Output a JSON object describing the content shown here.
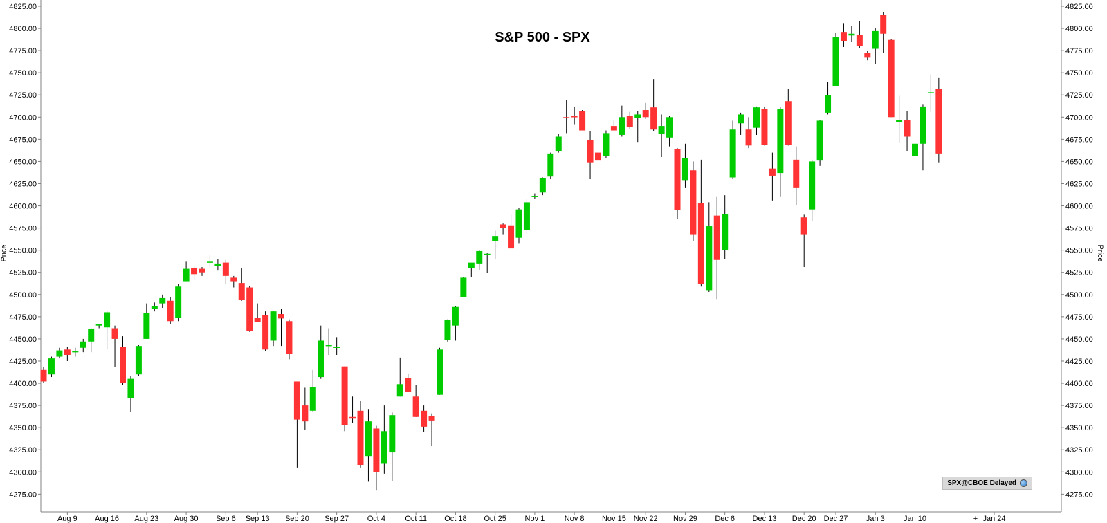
{
  "chart_data": {
    "type": "candlestick",
    "title": "S&P 500 - SPX",
    "ylabel_left": "Price",
    "ylabel_right": "Price",
    "ylim": [
      4255,
      4832
    ],
    "y_ticks": [
      4275,
      4300,
      4325,
      4350,
      4375,
      4400,
      4425,
      4450,
      4475,
      4500,
      4525,
      4550,
      4575,
      4600,
      4625,
      4650,
      4675,
      4700,
      4725,
      4750,
      4775,
      4800,
      4825
    ],
    "x_ticks": [
      "Aug 9",
      "Aug 16",
      "Aug 23",
      "Aug 30",
      "Sep 6",
      "Sep 13",
      "Sep 20",
      "Sep 27",
      "Oct 4",
      "Oct 11",
      "Oct 18",
      "Oct 25",
      "Nov 1",
      "Nov 8",
      "Nov 15",
      "Nov 22",
      "Nov 29",
      "Dec 6",
      "Dec 13",
      "Dec 20",
      "Dec 27",
      "Jan 3",
      "Jan 10",
      "Jan 24"
    ],
    "x_tick_slot": [
      3,
      8,
      13,
      18,
      23,
      27,
      32,
      37,
      42,
      47,
      52,
      57,
      62,
      67,
      72,
      76,
      81,
      86,
      91,
      96,
      100,
      105,
      110,
      120
    ],
    "x_slot_count": 122,
    "colors": {
      "up": "#00cc00",
      "down": "#ff3333",
      "wick": "#000000",
      "axis": "#808080"
    },
    "candles": [
      {
        "open": 4415,
        "high": 4418,
        "low": 4400,
        "close": 4402
      },
      {
        "open": 4410,
        "high": 4430,
        "low": 4407,
        "close": 4428
      },
      {
        "open": 4430,
        "high": 4440,
        "low": 4428,
        "close": 4437
      },
      {
        "open": 4438,
        "high": 4441,
        "low": 4425,
        "close": 4432
      },
      {
        "open": 4436,
        "high": 4440,
        "low": 4430,
        "close": 4436
      },
      {
        "open": 4440,
        "high": 4450,
        "low": 4435,
        "close": 4447
      },
      {
        "open": 4447,
        "high": 4462,
        "low": 4435,
        "close": 4461
      },
      {
        "open": 4465,
        "high": 4467,
        "low": 4462,
        "close": 4467
      },
      {
        "open": 4463,
        "high": 4481,
        "low": 4438,
        "close": 4480
      },
      {
        "open": 4462,
        "high": 4465,
        "low": 4418,
        "close": 4450
      },
      {
        "open": 4441,
        "high": 4453,
        "low": 4398,
        "close": 4400
      },
      {
        "open": 4383,
        "high": 4408,
        "low": 4368,
        "close": 4405
      },
      {
        "open": 4410,
        "high": 4443,
        "low": 4408,
        "close": 4442
      },
      {
        "open": 4450,
        "high": 4490,
        "low": 4450,
        "close": 4479
      },
      {
        "open": 4484,
        "high": 4491,
        "low": 4481,
        "close": 4487
      },
      {
        "open": 4490,
        "high": 4500,
        "low": 4485,
        "close": 4496
      },
      {
        "open": 4493,
        "high": 4497,
        "low": 4467,
        "close": 4470
      },
      {
        "open": 4474,
        "high": 4512,
        "low": 4470,
        "close": 4509
      },
      {
        "open": 4515,
        "high": 4537,
        "low": 4515,
        "close": 4529
      },
      {
        "open": 4530,
        "high": 4532,
        "low": 4516,
        "close": 4523
      },
      {
        "open": 4529,
        "high": 4531,
        "low": 4521,
        "close": 4525
      },
      {
        "open": 4536,
        "high": 4545,
        "low": 4530,
        "close": 4537
      },
      {
        "open": 4532,
        "high": 4540,
        "low": 4527,
        "close": 4535
      },
      {
        "open": 4536,
        "high": 4539,
        "low": 4512,
        "close": 4521
      },
      {
        "open": 4519,
        "high": 4521,
        "low": 4508,
        "close": 4515
      },
      {
        "open": 4513,
        "high": 4530,
        "low": 4493,
        "close": 4494
      },
      {
        "open": 4508,
        "high": 4510,
        "low": 4458,
        "close": 4459
      },
      {
        "open": 4474,
        "high": 4490,
        "low": 4470,
        "close": 4469
      },
      {
        "open": 4477,
        "high": 4481,
        "low": 4436,
        "close": 4438
      },
      {
        "open": 4448,
        "high": 4481,
        "low": 4442,
        "close": 4481
      },
      {
        "open": 4478,
        "high": 4484,
        "low": 4442,
        "close": 4473
      },
      {
        "open": 4470,
        "high": 4472,
        "low": 4427,
        "close": 4433
      },
      {
        "open": 4402,
        "high": 4402,
        "low": 4305,
        "close": 4359
      },
      {
        "open": 4375,
        "high": 4395,
        "low": 4347,
        "close": 4357
      },
      {
        "open": 4369,
        "high": 4415,
        "low": 4368,
        "close": 4396
      },
      {
        "open": 4407,
        "high": 4465,
        "low": 4405,
        "close": 4448
      },
      {
        "open": 4443,
        "high": 4462,
        "low": 4432,
        "close": 4443
      },
      {
        "open": 4441,
        "high": 4452,
        "low": 4432,
        "close": 4441
      },
      {
        "open": 4419,
        "high": 4419,
        "low": 4346,
        "close": 4353
      },
      {
        "open": 4362,
        "high": 4385,
        "low": 4355,
        "close": 4361
      },
      {
        "open": 4369,
        "high": 4380,
        "low": 4305,
        "close": 4308
      },
      {
        "open": 4318,
        "high": 4371,
        "low": 4289,
        "close": 4357
      },
      {
        "open": 4349,
        "high": 4352,
        "low": 4279,
        "close": 4300
      },
      {
        "open": 4310,
        "high": 4375,
        "low": 4298,
        "close": 4346
      },
      {
        "open": 4322,
        "high": 4367,
        "low": 4290,
        "close": 4364
      },
      {
        "open": 4385,
        "high": 4429,
        "low": 4385,
        "close": 4399
      },
      {
        "open": 4406,
        "high": 4411,
        "low": 4390,
        "close": 4390
      },
      {
        "open": 4385,
        "high": 4398,
        "low": 4362,
        "close": 4362
      },
      {
        "open": 4369,
        "high": 4375,
        "low": 4345,
        "close": 4351
      },
      {
        "open": 4363,
        "high": 4366,
        "low": 4329,
        "close": 4358
      },
      {
        "open": 4387,
        "high": 4440,
        "low": 4387,
        "close": 4438
      },
      {
        "open": 4449,
        "high": 4472,
        "low": 4447,
        "close": 4471
      },
      {
        "open": 4465,
        "high": 4487,
        "low": 4448,
        "close": 4486
      },
      {
        "open": 4497,
        "high": 4520,
        "low": 4497,
        "close": 4519
      },
      {
        "open": 4530,
        "high": 4535,
        "low": 4520,
        "close": 4536
      },
      {
        "open": 4535,
        "high": 4550,
        "low": 4528,
        "close": 4549
      },
      {
        "open": 4545,
        "high": 4547,
        "low": 4524,
        "close": 4546
      },
      {
        "open": 4560,
        "high": 4572,
        "low": 4540,
        "close": 4566
      },
      {
        "open": 4579,
        "high": 4580,
        "low": 4568,
        "close": 4575
      },
      {
        "open": 4578,
        "high": 4590,
        "low": 4555,
        "close": 4552
      },
      {
        "open": 4564,
        "high": 4598,
        "low": 4558,
        "close": 4596
      },
      {
        "open": 4573,
        "high": 4608,
        "low": 4569,
        "close": 4604
      },
      {
        "open": 4611,
        "high": 4614,
        "low": 4608,
        "close": 4611
      },
      {
        "open": 4615,
        "high": 4632,
        "low": 4612,
        "close": 4631
      },
      {
        "open": 4633,
        "high": 4660,
        "low": 4630,
        "close": 4659
      },
      {
        "open": 4662,
        "high": 4681,
        "low": 4660,
        "close": 4678
      },
      {
        "open": 4700,
        "high": 4719,
        "low": 4682,
        "close": 4699
      },
      {
        "open": 4701,
        "high": 4712,
        "low": 4692,
        "close": 4700
      },
      {
        "open": 4707,
        "high": 4708,
        "low": 4685,
        "close": 4685
      },
      {
        "open": 4674,
        "high": 4684,
        "low": 4630,
        "close": 4649
      },
      {
        "open": 4660,
        "high": 4664,
        "low": 4648,
        "close": 4651
      },
      {
        "open": 4656,
        "high": 4685,
        "low": 4654,
        "close": 4682
      },
      {
        "open": 4690,
        "high": 4696,
        "low": 4688,
        "close": 4685
      },
      {
        "open": 4680,
        "high": 4713,
        "low": 4678,
        "close": 4700
      },
      {
        "open": 4701,
        "high": 4706,
        "low": 4687,
        "close": 4689
      },
      {
        "open": 4699,
        "high": 4707,
        "low": 4672,
        "close": 4703
      },
      {
        "open": 4708,
        "high": 4716,
        "low": 4698,
        "close": 4700
      },
      {
        "open": 4711,
        "high": 4743,
        "low": 4684,
        "close": 4686
      },
      {
        "open": 4681,
        "high": 4703,
        "low": 4655,
        "close": 4690
      },
      {
        "open": 4677,
        "high": 4701,
        "low": 4667,
        "close": 4700
      },
      {
        "open": 4664,
        "high": 4665,
        "low": 4585,
        "close": 4595
      },
      {
        "open": 4629,
        "high": 4670,
        "low": 4620,
        "close": 4654
      },
      {
        "open": 4640,
        "high": 4650,
        "low": 4560,
        "close": 4568
      },
      {
        "open": 4603,
        "high": 4652,
        "low": 4509,
        "close": 4512
      },
      {
        "open": 4505,
        "high": 4604,
        "low": 4503,
        "close": 4577
      },
      {
        "open": 4589,
        "high": 4610,
        "low": 4495,
        "close": 4539
      },
      {
        "open": 4550,
        "high": 4612,
        "low": 4540,
        "close": 4591
      },
      {
        "open": 4632,
        "high": 4696,
        "low": 4630,
        "close": 4686
      },
      {
        "open": 4693,
        "high": 4705,
        "low": 4680,
        "close": 4703
      },
      {
        "open": 4686,
        "high": 4700,
        "low": 4665,
        "close": 4668
      },
      {
        "open": 4688,
        "high": 4712,
        "low": 4680,
        "close": 4711
      },
      {
        "open": 4709,
        "high": 4712,
        "low": 4668,
        "close": 4669
      },
      {
        "open": 4642,
        "high": 4660,
        "low": 4606,
        "close": 4634
      },
      {
        "open": 4637,
        "high": 4711,
        "low": 4610,
        "close": 4709
      },
      {
        "open": 4718,
        "high": 4732,
        "low": 4668,
        "close": 4669
      },
      {
        "open": 4652,
        "high": 4667,
        "low": 4601,
        "close": 4620
      },
      {
        "open": 4587,
        "high": 4590,
        "low": 4531,
        "close": 4568
      },
      {
        "open": 4596,
        "high": 4652,
        "low": 4583,
        "close": 4650
      },
      {
        "open": 4651,
        "high": 4697,
        "low": 4645,
        "close": 4696
      },
      {
        "open": 4705,
        "high": 4740,
        "low": 4703,
        "close": 4725
      },
      {
        "open": 4735,
        "high": 4795,
        "low": 4735,
        "close": 4790
      },
      {
        "open": 4796,
        "high": 4806,
        "low": 4779,
        "close": 4786
      },
      {
        "open": 4792,
        "high": 4803,
        "low": 4785,
        "close": 4794
      },
      {
        "open": 4793,
        "high": 4808,
        "low": 4778,
        "close": 4780
      },
      {
        "open": 4772,
        "high": 4775,
        "low": 4764,
        "close": 4767
      },
      {
        "open": 4777,
        "high": 4800,
        "low": 4760,
        "close": 4797
      },
      {
        "open": 4815,
        "high": 4818,
        "low": 4772,
        "close": 4794
      },
      {
        "open": 4787,
        "high": 4788,
        "low": 4700,
        "close": 4700
      },
      {
        "open": 4694,
        "high": 4724,
        "low": 4671,
        "close": 4697
      },
      {
        "open": 4697,
        "high": 4707,
        "low": 4662,
        "close": 4678
      },
      {
        "open": 4656,
        "high": 4673,
        "low": 4582,
        "close": 4670
      },
      {
        "open": 4670,
        "high": 4714,
        "low": 4640,
        "close": 4712
      },
      {
        "open": 4727,
        "high": 4748,
        "low": 4706,
        "close": 4728
      },
      {
        "open": 4732,
        "high": 4744,
        "low": 4649,
        "close": 4659
      }
    ]
  },
  "badge": {
    "text": "SPX@CBOE Delayed",
    "icon": "globe-icon"
  },
  "axis_extra": {
    "right_end_marker": "+"
  }
}
